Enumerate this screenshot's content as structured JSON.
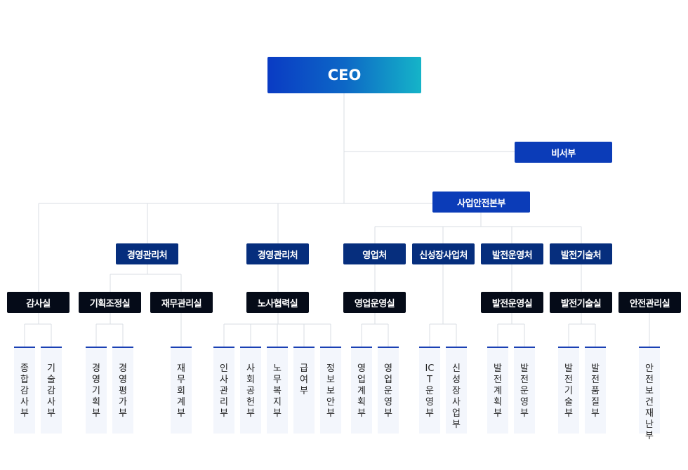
{
  "ceo": "CEO",
  "secretary": "비서부",
  "business_safety": "사업안전본부",
  "divisions": {
    "mgmt1": "경영관리처",
    "mgmt2": "경영관리처",
    "sales": "영업처",
    "new_biz": "신성장사업처",
    "plant_ops": "발전운영처",
    "plant_tech": "발전기술처"
  },
  "offices": {
    "audit": "감사실",
    "planning": "기획조정실",
    "finance": "재무관리실",
    "labor": "노사협력실",
    "sales_ops": "영업운영실",
    "plant_ops": "발전운영실",
    "plant_tech": "발전기술실",
    "safety": "안전관리실"
  },
  "departments": {
    "d1": "종합감사부",
    "d2": "기술감사부",
    "d3": "경영기획부",
    "d4": "경영평가부",
    "d5": "재무회계부",
    "d6": "인사관리부",
    "d7": "사회공헌부",
    "d8": "노무복지부",
    "d9": "급여부",
    "d10": "정보보안부",
    "d11": "영업계획부",
    "d12": "영업운영부",
    "d13": "ICT운영부",
    "d14": "신성장사업부",
    "d15": "발전계획부",
    "d16": "발전운영부",
    "d17": "발전기술부",
    "d18": "발전품질부",
    "d19": "안전보건재난부"
  }
}
